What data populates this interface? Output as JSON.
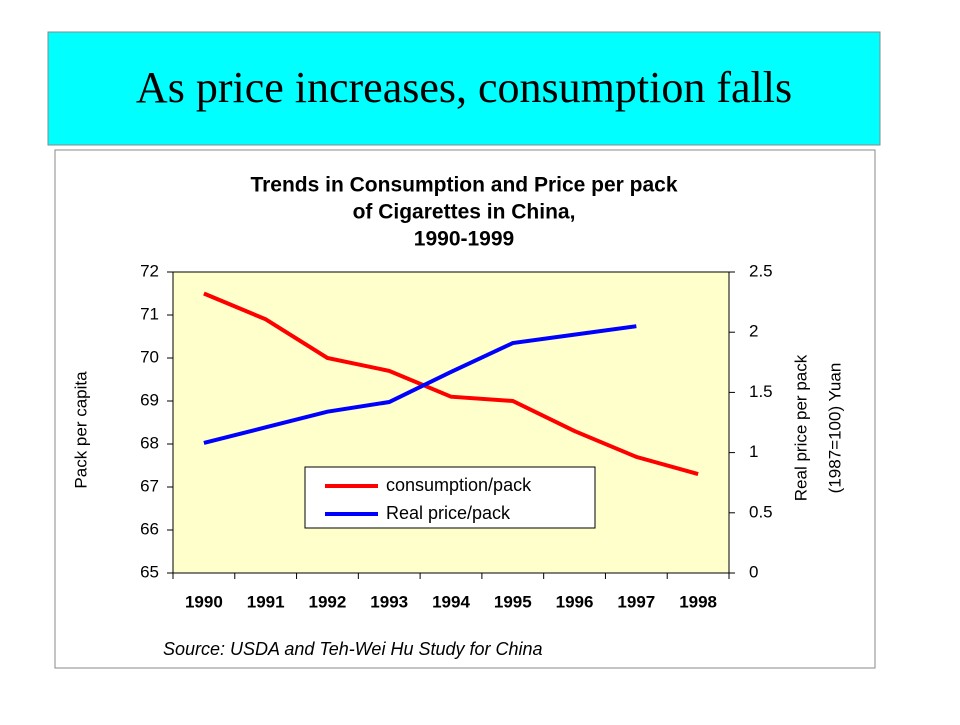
{
  "slide_title": "As price increases, consumption falls",
  "chart_data": {
    "type": "line",
    "title": [
      "Trends in Consumption and Price per pack",
      "of Cigarettes in China,",
      "1990-1999"
    ],
    "categories": [
      "1990",
      "1991",
      "1992",
      "1993",
      "1994",
      "1995",
      "1996",
      "1997",
      "1998"
    ],
    "series": [
      {
        "name": "consumption/pack",
        "color": "#ff0000",
        "values": [
          71.5,
          70.9,
          70.0,
          69.7,
          69.1,
          69.0,
          68.3,
          67.7,
          67.3
        ]
      },
      {
        "name": "Real price/pack",
        "color": "#0000ff",
        "axis": "y2",
        "values": [
          1.08,
          1.21,
          1.34,
          1.42,
          1.67,
          1.91,
          1.98,
          2.05,
          null
        ]
      }
    ],
    "ylim": [
      65,
      72
    ],
    "yticks": [
      65,
      66,
      67,
      68,
      69,
      70,
      71,
      72
    ],
    "y2lim": [
      0,
      2.5
    ],
    "y2ticks": [
      0,
      0.5,
      1,
      1.5,
      2,
      2.5
    ],
    "y_label": "Pack per capita",
    "y2_label": [
      "Real price per pack",
      "(1987=100) Yuan"
    ],
    "source": "Source: USDA and Teh-Wei Hu Study for China",
    "plot_background": "#ffffcc"
  }
}
